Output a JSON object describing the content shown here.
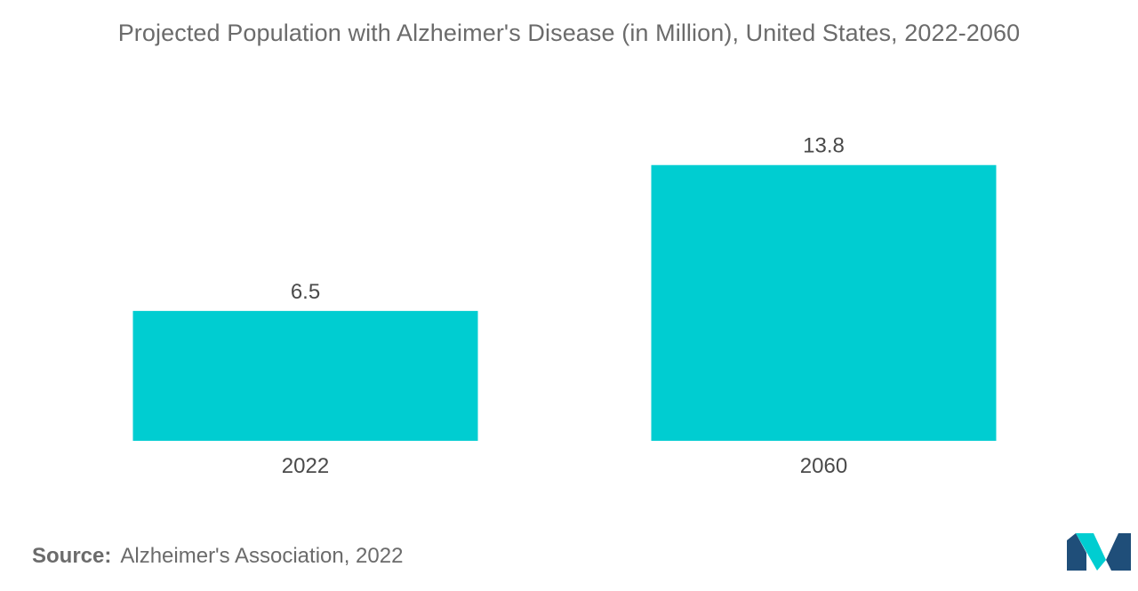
{
  "chart_data": {
    "type": "bar",
    "title": "Projected Population with Alzheimer's Disease (in Million), United States, 2022-2060",
    "categories": [
      "2022",
      "2060"
    ],
    "values": [
      6.5,
      13.8
    ],
    "data_labels": [
      "6.5",
      "13.8"
    ],
    "xlabel": "",
    "ylabel": "",
    "ylim": [
      0,
      14.5
    ],
    "grid": false,
    "legend": "none",
    "bar_color": "#00cdd1"
  },
  "source": {
    "prefix": "Source:",
    "text": "Alzheimer's Association, 2022"
  },
  "logo": {
    "icon": "mordor-logo-icon",
    "colors": [
      "#1f4e79",
      "#00cdd1"
    ]
  }
}
